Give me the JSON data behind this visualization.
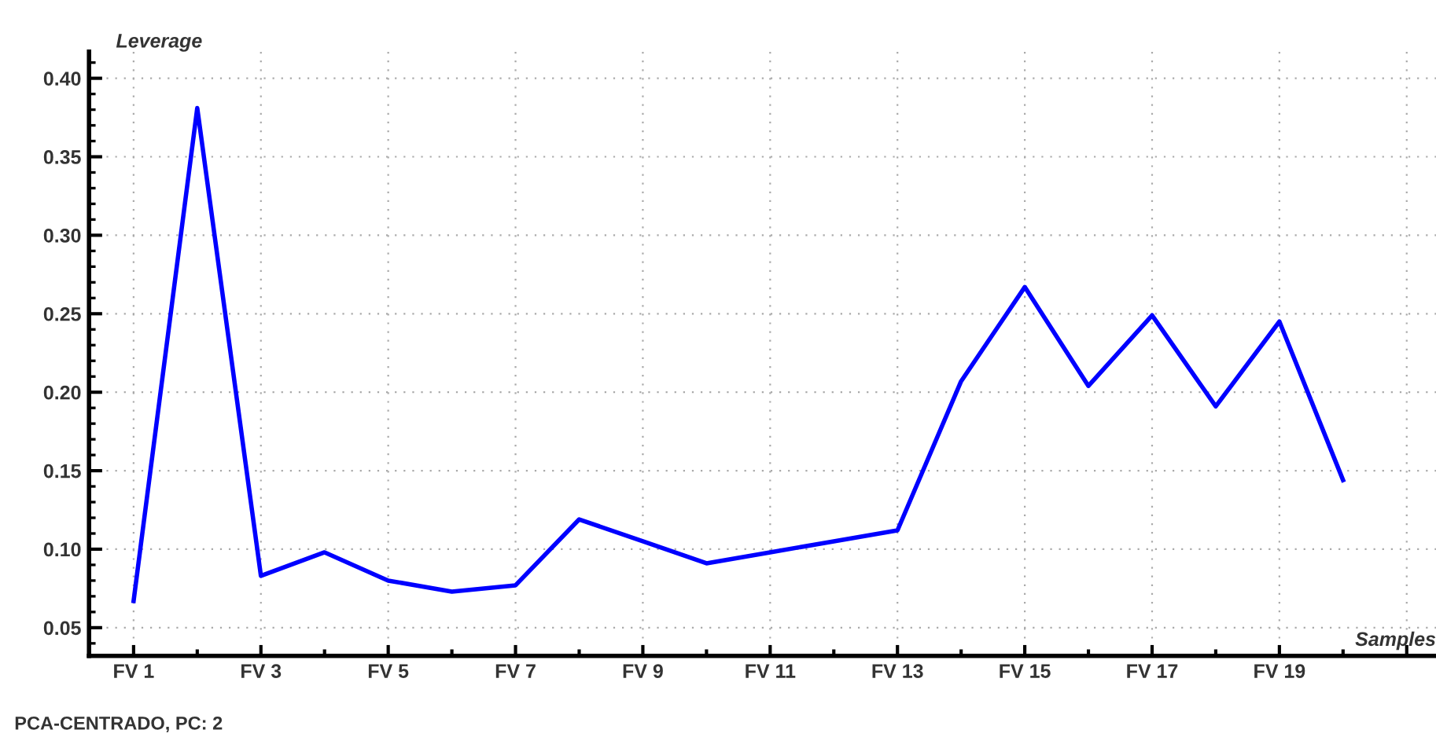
{
  "chart_data": {
    "type": "line",
    "xlabel": "Samples",
    "ylabel": "Leverage",
    "annotations": [
      "PCA-CENTRADO, PC: 2"
    ],
    "categories": [
      "FV 1",
      null,
      "FV 3",
      null,
      "FV 5",
      null,
      "FV 7",
      null,
      "FV 9",
      null,
      "FV 11",
      null,
      "FV 13",
      null,
      "FV 15",
      null,
      "FV 17",
      null,
      "FV 19",
      null
    ],
    "series": [
      {
        "color": "#0000ff",
        "values": [
          0.067,
          0.381,
          0.083,
          0.098,
          0.08,
          0.073,
          0.077,
          0.119,
          0.105,
          0.091,
          0.098,
          0.105,
          0.112,
          0.207,
          0.267,
          0.204,
          0.249,
          0.191,
          0.245,
          0.144
        ]
      }
    ],
    "ylim": [
      0.032,
      0.417
    ],
    "yticks": [
      0.05,
      {
        "value": 0.1,
        "label": "0.10"
      },
      0.15,
      {
        "value": 0.2,
        "label": "0.20"
      },
      0.25,
      {
        "value": 0.3,
        "label": "0.30"
      },
      0.35,
      {
        "value": 0.4,
        "label": "0.40"
      }
    ],
    "grid": true,
    "marker": "none",
    "line_style": "solid"
  }
}
